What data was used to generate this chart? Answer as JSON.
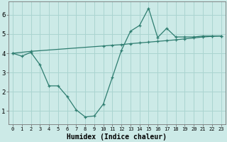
{
  "xlabel": "Humidex (Indice chaleur)",
  "bg_color": "#cceae7",
  "grid_color": "#aad4d0",
  "line_color": "#2e7d70",
  "x_ticks": [
    0,
    1,
    2,
    3,
    4,
    5,
    6,
    7,
    8,
    9,
    10,
    11,
    12,
    13,
    14,
    15,
    16,
    17,
    18,
    19,
    20,
    21,
    22,
    23
  ],
  "y_ticks": [
    1,
    2,
    3,
    4,
    5,
    6
  ],
  "ylim": [
    0.3,
    6.7
  ],
  "xlim": [
    -0.5,
    23.5
  ],
  "line1_x": [
    0,
    1,
    2,
    3,
    4,
    5,
    6,
    7,
    8,
    9,
    10,
    11,
    12,
    13,
    14,
    15,
    16,
    17,
    18,
    19,
    20,
    21,
    22,
    23
  ],
  "line1_y": [
    4.0,
    3.85,
    4.05,
    3.4,
    2.3,
    2.3,
    1.75,
    1.05,
    0.68,
    0.73,
    1.35,
    2.75,
    4.15,
    5.15,
    5.45,
    6.35,
    4.82,
    5.3,
    4.85,
    4.85,
    4.85,
    4.9,
    4.9,
    4.9
  ],
  "line2_x": [
    0,
    2,
    10,
    11,
    12,
    13,
    14,
    15,
    16,
    17,
    18,
    19,
    20,
    21,
    22,
    23
  ],
  "line2_y": [
    4.0,
    4.1,
    4.38,
    4.42,
    4.45,
    4.5,
    4.54,
    4.58,
    4.62,
    4.66,
    4.7,
    4.75,
    4.8,
    4.85,
    4.88,
    4.9
  ],
  "xlabel_fontsize": 7,
  "tick_fontsize_x": 5,
  "tick_fontsize_y": 6.5
}
